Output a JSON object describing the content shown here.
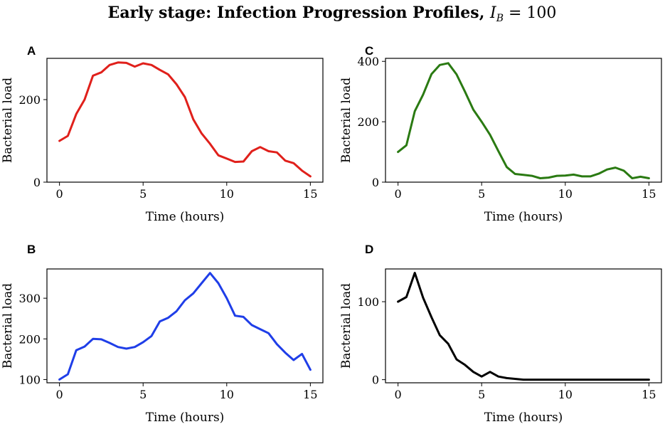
{
  "figure": {
    "title_main": "Early stage: Infection Progression Profiles, ",
    "title_var": "I",
    "title_sub": "B",
    "title_eq": " = 100"
  },
  "chart_data": [
    {
      "panel": "A",
      "type": "line",
      "color": "#e0201b",
      "xlabel": "Time (hours)",
      "ylabel": "Bacterial load",
      "xlim": [
        -0.75,
        15.75
      ],
      "ylim": [
        0,
        300
      ],
      "xticks": [
        0,
        5,
        10,
        15
      ],
      "yticks": [
        0,
        200
      ],
      "x": [
        0,
        0.5,
        1,
        1.5,
        2,
        2.5,
        3,
        3.5,
        4,
        4.5,
        5,
        5.5,
        6,
        6.5,
        7,
        7.5,
        8,
        8.5,
        9,
        9.5,
        10,
        10.5,
        11,
        11.5,
        12,
        12.5,
        13,
        13.5,
        14,
        14.5,
        15
      ],
      "y": [
        100,
        112,
        165,
        200,
        258,
        266,
        284,
        290,
        289,
        280,
        288,
        284,
        272,
        261,
        237,
        206,
        152,
        118,
        93,
        65,
        57,
        49,
        50,
        75,
        85,
        75,
        72,
        52,
        46,
        28,
        14
      ]
    },
    {
      "panel": "B",
      "type": "line",
      "color": "#1f3ee8",
      "xlabel": "Time (hours)",
      "ylabel": "Bacterial load",
      "xlim": [
        -0.75,
        15.75
      ],
      "ylim": [
        92,
        372
      ],
      "xticks": [
        0,
        5,
        10,
        15
      ],
      "yticks": [
        100,
        200,
        300
      ],
      "x": [
        0,
        0.5,
        1,
        1.5,
        2,
        2.5,
        3,
        3.5,
        4,
        4.5,
        5,
        5.5,
        6,
        6.5,
        7,
        7.5,
        8,
        8.5,
        9,
        9.5,
        10,
        10.5,
        11,
        11.5,
        12,
        12.5,
        13,
        13.5,
        14,
        14.5,
        15
      ],
      "y": [
        100,
        113,
        172,
        181,
        200,
        199,
        190,
        180,
        176,
        180,
        192,
        207,
        243,
        252,
        268,
        295,
        312,
        337,
        362,
        337,
        300,
        257,
        254,
        234,
        224,
        214,
        187,
        166,
        148,
        163,
        124
      ]
    },
    {
      "panel": "C",
      "type": "line",
      "color": "#2a7a12",
      "xlabel": "Time (hours)",
      "ylabel": "Bacterial load",
      "xlim": [
        -0.75,
        15.75
      ],
      "ylim": [
        0,
        410
      ],
      "xticks": [
        0,
        5,
        10,
        15
      ],
      "yticks": [
        0,
        200,
        400
      ],
      "x": [
        0,
        0.5,
        1,
        1.5,
        2,
        2.5,
        3,
        3.5,
        4,
        4.5,
        5,
        5.5,
        6,
        6.5,
        7,
        7.5,
        8,
        8.5,
        9,
        9.5,
        10,
        10.5,
        11,
        11.5,
        12,
        12.5,
        13,
        13.5,
        14,
        14.5,
        15
      ],
      "y": [
        100,
        122,
        235,
        290,
        358,
        388,
        394,
        357,
        300,
        240,
        200,
        157,
        103,
        50,
        27,
        24,
        21,
        13,
        15,
        21,
        22,
        25,
        19,
        19,
        28,
        42,
        48,
        38,
        13,
        18,
        13
      ]
    },
    {
      "panel": "D",
      "type": "line",
      "color": "#000000",
      "xlabel": "Time (hours)",
      "ylabel": "Bacterial load",
      "xlim": [
        -0.75,
        15.75
      ],
      "ylim": [
        -4,
        142
      ],
      "xticks": [
        0,
        5,
        10,
        15
      ],
      "yticks": [
        0,
        100
      ],
      "x": [
        0,
        0.5,
        1,
        1.5,
        2,
        2.5,
        3,
        3.5,
        4,
        4.5,
        5,
        5.5,
        6,
        6.5,
        7,
        7.5,
        8,
        8.5,
        9,
        9.5,
        10,
        10.5,
        11,
        11.5,
        12,
        12.5,
        13,
        13.5,
        14,
        14.5,
        15
      ],
      "y": [
        100,
        106,
        137,
        105,
        80,
        57,
        46,
        26,
        19,
        10,
        4,
        10,
        4,
        2,
        1,
        0,
        0,
        0,
        0,
        0,
        0,
        0,
        0,
        0,
        0,
        0,
        0,
        0,
        0,
        0,
        0
      ]
    }
  ]
}
